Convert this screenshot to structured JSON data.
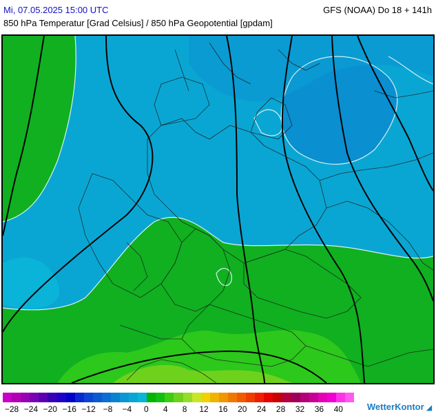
{
  "header": {
    "date": "Mi, 07.05.2025 15:00 UTC",
    "model": "GFS (NOAA) Do 18 + 141h",
    "parameters": "850 hPa Temperatur [Grad Celsius] / 850 hPa Geopotential [gpdam]"
  },
  "map": {
    "region": "Central Europe",
    "colors": {
      "cold_blue": "#0a8fd0",
      "mid_blue": "#0aa6d3",
      "light_blue": "#0ab4d8",
      "green": "#10b020",
      "bright_green": "#2cc81c",
      "yellow_green": "#6ed21c",
      "isotherm": "#d8f0f0",
      "geopotential": "#000000"
    }
  },
  "legend": {
    "colors": [
      "#c800c8",
      "#b400b4",
      "#9a00b4",
      "#7a00b4",
      "#5a00b4",
      "#3c00b4",
      "#1e00c8",
      "#0000c8",
      "#0a28d2",
      "#0a46d2",
      "#0a5ad2",
      "#0a6ed2",
      "#0a82d2",
      "#0a96d2",
      "#0aa6d3",
      "#0ab4d8",
      "#00b400",
      "#10c010",
      "#3ccc10",
      "#6ed21c",
      "#96dc28",
      "#c8e628",
      "#f0d200",
      "#f0b400",
      "#f09600",
      "#f07800",
      "#f05a00",
      "#f03c00",
      "#f01e00",
      "#e60000",
      "#c80000",
      "#b4003c",
      "#a0005a",
      "#b40078",
      "#c80096",
      "#e600b4",
      "#f000d2",
      "#ff32e6",
      "#ff5af0"
    ],
    "ticks": [
      "−28",
      "−24",
      "−20",
      "−16",
      "−12",
      "−8",
      "−4",
      "0",
      "4",
      "8",
      "12",
      "16",
      "20",
      "24",
      "28",
      "32",
      "36",
      "40"
    ]
  },
  "logo": {
    "text": "WetterKontor"
  }
}
